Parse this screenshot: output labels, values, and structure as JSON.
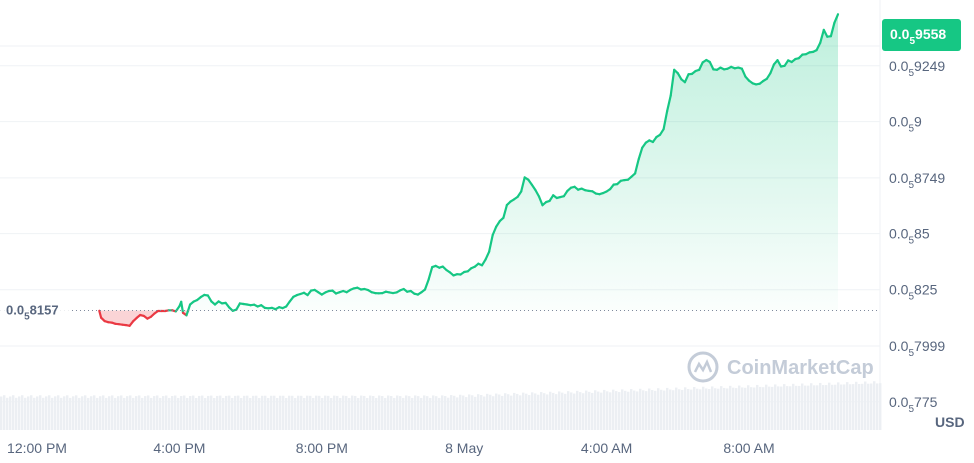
{
  "chart_data": {
    "type": "area",
    "currency_unit": "USD",
    "watermark": "CoinMarketCap",
    "x_ticks": [
      "12:00 PM",
      "4:00 PM",
      "8:00 PM",
      "8 May",
      "4:00 AM",
      "8:00 AM"
    ],
    "y_ticks": [
      {
        "prefix": "0.0",
        "sub": "5",
        "rest": "775",
        "value": 0.775
      },
      {
        "prefix": "0.0",
        "sub": "5",
        "rest": "7999",
        "value": 0.7999
      },
      {
        "prefix": "0.0",
        "sub": "5",
        "rest": "825",
        "value": 0.825
      },
      {
        "prefix": "0.0",
        "sub": "5",
        "rest": "85",
        "value": 0.85
      },
      {
        "prefix": "0.0",
        "sub": "5",
        "rest": "8749",
        "value": 0.8749
      },
      {
        "prefix": "0.0",
        "sub": "5",
        "rest": "9",
        "value": 0.9
      },
      {
        "prefix": "0.0",
        "sub": "5",
        "rest": "9249",
        "value": 0.9249
      }
    ],
    "y_scale_note": "values expressed as the digits after the 0.0 with 5 subscript zeros",
    "ylim": [
      0.7624,
      0.9498
    ],
    "reference": {
      "prefix": "0.0",
      "sub": "5",
      "rest": "8157",
      "value": 0.8157
    },
    "current": {
      "prefix": "0.0",
      "sub": "5",
      "rest": "9558",
      "value": 0.9558
    },
    "colors": {
      "up": "#16c784",
      "down": "#ea3943",
      "grid": "#eff2f5",
      "axis_text": "#58667e",
      "volume": "#eceff3"
    },
    "x_range_hours": [
      0,
      24.65
    ],
    "x_tick_hours": [
      0,
      4,
      8,
      12,
      16,
      20
    ],
    "series": [
      {
        "values": [
          [
            1.75,
            0.8156
          ],
          [
            1.8,
            0.8125
          ],
          [
            1.9,
            0.811
          ],
          [
            2.0,
            0.8105
          ],
          [
            2.1,
            0.8103
          ],
          [
            2.2,
            0.8098
          ],
          [
            2.3,
            0.8096
          ],
          [
            2.4,
            0.8094
          ],
          [
            2.5,
            0.8092
          ],
          [
            2.6,
            0.8089
          ],
          [
            2.7,
            0.8109
          ],
          [
            2.8,
            0.8124
          ],
          [
            2.9,
            0.8137
          ],
          [
            3.0,
            0.8133
          ],
          [
            3.1,
            0.8121
          ],
          [
            3.2,
            0.8129
          ],
          [
            3.3,
            0.8144
          ],
          [
            3.4,
            0.8155
          ],
          [
            3.5,
            0.8155
          ],
          [
            3.6,
            0.8155
          ],
          [
            3.7,
            0.8158
          ],
          [
            3.8,
            0.8158
          ],
          [
            3.9,
            0.8153
          ],
          [
            4.0,
            0.8176
          ],
          [
            4.05,
            0.8196
          ],
          [
            4.1,
            0.8147
          ],
          [
            4.2,
            0.8136
          ],
          [
            4.3,
            0.8184
          ],
          [
            4.4,
            0.8197
          ],
          [
            4.5,
            0.8204
          ],
          [
            4.6,
            0.8217
          ],
          [
            4.7,
            0.8227
          ],
          [
            4.8,
            0.8224
          ],
          [
            4.9,
            0.8198
          ],
          [
            5.0,
            0.8184
          ],
          [
            5.1,
            0.8198
          ],
          [
            5.2,
            0.8189
          ],
          [
            5.3,
            0.8191
          ],
          [
            5.4,
            0.8171
          ],
          [
            5.5,
            0.8156
          ],
          [
            5.6,
            0.8161
          ],
          [
            5.7,
            0.8189
          ],
          [
            5.8,
            0.8186
          ],
          [
            5.9,
            0.8184
          ],
          [
            6.0,
            0.8181
          ],
          [
            6.1,
            0.8183
          ],
          [
            6.2,
            0.8175
          ],
          [
            6.3,
            0.8181
          ],
          [
            6.4,
            0.8169
          ],
          [
            6.5,
            0.8167
          ],
          [
            6.6,
            0.8169
          ],
          [
            6.7,
            0.8163
          ],
          [
            6.8,
            0.8172
          ],
          [
            6.9,
            0.8168
          ],
          [
            7.0,
            0.8175
          ],
          [
            7.1,
            0.8198
          ],
          [
            7.2,
            0.8218
          ],
          [
            7.3,
            0.8226
          ],
          [
            7.4,
            0.8231
          ],
          [
            7.5,
            0.8236
          ],
          [
            7.6,
            0.8226
          ],
          [
            7.7,
            0.8246
          ],
          [
            7.8,
            0.8249
          ],
          [
            7.9,
            0.8239
          ],
          [
            8.0,
            0.8228
          ],
          [
            8.1,
            0.8238
          ],
          [
            8.2,
            0.8244
          ],
          [
            8.3,
            0.8246
          ],
          [
            8.4,
            0.8233
          ],
          [
            8.5,
            0.8239
          ],
          [
            8.6,
            0.8244
          ],
          [
            8.7,
            0.8239
          ],
          [
            8.8,
            0.8249
          ],
          [
            8.9,
            0.8256
          ],
          [
            9.0,
            0.8259
          ],
          [
            9.1,
            0.8251
          ],
          [
            9.2,
            0.8253
          ],
          [
            9.3,
            0.8248
          ],
          [
            9.4,
            0.8239
          ],
          [
            9.5,
            0.8235
          ],
          [
            9.6,
            0.8234
          ],
          [
            9.7,
            0.8235
          ],
          [
            9.8,
            0.8241
          ],
          [
            9.9,
            0.8238
          ],
          [
            10.0,
            0.8235
          ],
          [
            10.1,
            0.8238
          ],
          [
            10.2,
            0.8247
          ],
          [
            10.3,
            0.8253
          ],
          [
            10.4,
            0.8241
          ],
          [
            10.5,
            0.8244
          ],
          [
            10.6,
            0.8232
          ],
          [
            10.7,
            0.8228
          ],
          [
            10.8,
            0.8239
          ],
          [
            10.9,
            0.8251
          ],
          [
            11.0,
            0.8295
          ],
          [
            11.1,
            0.8351
          ],
          [
            11.2,
            0.8356
          ],
          [
            11.3,
            0.8348
          ],
          [
            11.4,
            0.8353
          ],
          [
            11.5,
            0.8338
          ],
          [
            11.6,
            0.8327
          ],
          [
            11.7,
            0.8314
          ],
          [
            11.8,
            0.8319
          ],
          [
            11.9,
            0.8318
          ],
          [
            12.0,
            0.8329
          ],
          [
            12.1,
            0.8332
          ],
          [
            12.2,
            0.8346
          ],
          [
            12.3,
            0.8353
          ],
          [
            12.4,
            0.8366
          ],
          [
            12.5,
            0.8359
          ],
          [
            12.6,
            0.8385
          ],
          [
            12.7,
            0.8419
          ],
          [
            12.8,
            0.8494
          ],
          [
            12.9,
            0.8531
          ],
          [
            13.0,
            0.8556
          ],
          [
            13.1,
            0.8571
          ],
          [
            13.2,
            0.8628
          ],
          [
            13.3,
            0.8643
          ],
          [
            13.4,
            0.8653
          ],
          [
            13.5,
            0.8664
          ],
          [
            13.6,
            0.8688
          ],
          [
            13.7,
            0.8751
          ],
          [
            13.8,
            0.8741
          ],
          [
            13.9,
            0.8719
          ],
          [
            14.0,
            0.8695
          ],
          [
            14.1,
            0.8666
          ],
          [
            14.2,
            0.8627
          ],
          [
            14.3,
            0.8641
          ],
          [
            14.4,
            0.8646
          ],
          [
            14.5,
            0.8671
          ],
          [
            14.6,
            0.8659
          ],
          [
            14.7,
            0.8663
          ],
          [
            14.8,
            0.8667
          ],
          [
            14.9,
            0.8691
          ],
          [
            15.0,
            0.8705
          ],
          [
            15.1,
            0.8709
          ],
          [
            15.2,
            0.8696
          ],
          [
            15.3,
            0.8701
          ],
          [
            15.4,
            0.8694
          ],
          [
            15.5,
            0.8691
          ],
          [
            15.6,
            0.8689
          ],
          [
            15.7,
            0.8679
          ],
          [
            15.8,
            0.8676
          ],
          [
            15.9,
            0.8681
          ],
          [
            16.0,
            0.8688
          ],
          [
            16.1,
            0.8699
          ],
          [
            16.2,
            0.8719
          ],
          [
            16.3,
            0.8721
          ],
          [
            16.4,
            0.8736
          ],
          [
            16.5,
            0.8739
          ],
          [
            16.6,
            0.8741
          ],
          [
            16.7,
            0.8754
          ],
          [
            16.8,
            0.8769
          ],
          [
            16.9,
            0.8831
          ],
          [
            17.0,
            0.8883
          ],
          [
            17.1,
            0.8906
          ],
          [
            17.2,
            0.8916
          ],
          [
            17.3,
            0.8909
          ],
          [
            17.4,
            0.8931
          ],
          [
            17.5,
            0.8941
          ],
          [
            17.6,
            0.8966
          ],
          [
            17.7,
            0.9046
          ],
          [
            17.8,
            0.9116
          ],
          [
            17.9,
            0.9231
          ],
          [
            18.0,
            0.9216
          ],
          [
            18.1,
            0.9189
          ],
          [
            18.2,
            0.9176
          ],
          [
            18.3,
            0.9211
          ],
          [
            18.4,
            0.9213
          ],
          [
            18.5,
            0.9226
          ],
          [
            18.6,
            0.9231
          ],
          [
            18.7,
            0.9264
          ],
          [
            18.8,
            0.9275
          ],
          [
            18.9,
            0.9266
          ],
          [
            19.0,
            0.9233
          ],
          [
            19.1,
            0.9231
          ],
          [
            19.2,
            0.9241
          ],
          [
            19.3,
            0.9233
          ],
          [
            19.4,
            0.9236
          ],
          [
            19.5,
            0.9244
          ],
          [
            19.6,
            0.9238
          ],
          [
            19.7,
            0.9241
          ],
          [
            19.8,
            0.9236
          ],
          [
            19.9,
            0.9201
          ],
          [
            20.0,
            0.9183
          ],
          [
            20.1,
            0.9171
          ],
          [
            20.2,
            0.9166
          ],
          [
            20.3,
            0.9169
          ],
          [
            20.4,
            0.9181
          ],
          [
            20.5,
            0.9191
          ],
          [
            20.6,
            0.9216
          ],
          [
            20.7,
            0.9255
          ],
          [
            20.8,
            0.9274
          ],
          [
            20.9,
            0.9246
          ],
          [
            21.0,
            0.9249
          ],
          [
            21.1,
            0.9273
          ],
          [
            21.2,
            0.9266
          ],
          [
            21.3,
            0.9279
          ],
          [
            21.4,
            0.9283
          ],
          [
            21.5,
            0.9299
          ],
          [
            21.6,
            0.9301
          ],
          [
            21.7,
            0.9309
          ],
          [
            21.8,
            0.9311
          ],
          [
            21.9,
            0.9319
          ],
          [
            22.0,
            0.9351
          ],
          [
            22.1,
            0.9409
          ],
          [
            22.2,
            0.9379
          ],
          [
            22.3,
            0.9381
          ],
          [
            22.4,
            0.9441
          ],
          [
            22.5,
            0.9479
          ]
        ]
      }
    ]
  }
}
